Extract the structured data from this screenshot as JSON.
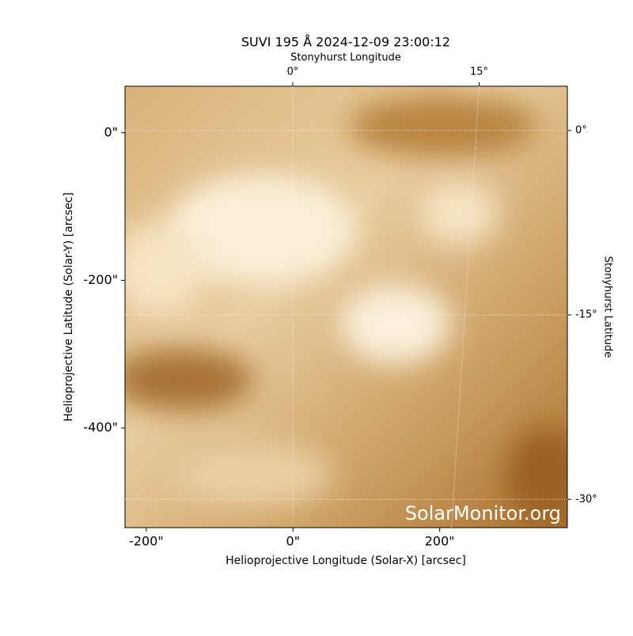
{
  "chart_data": {
    "type": "image",
    "title": "SUVI 195 Å 2024-12-09 23:00:12",
    "x_label": "Helioprojective Longitude (Solar-X) [arcsec]",
    "y_label": "Helioprojective Latitude (Solar-Y) [arcsec]",
    "x2_label": "Stonyhurst Longitude",
    "y2_label": "Stonyhurst Latitude",
    "xlim": [
      -229,
      374
    ],
    "ylim": [
      -535,
      63
    ],
    "xticks": [
      {
        "value": -200,
        "label": "-200\""
      },
      {
        "value": 0,
        "label": "0\""
      },
      {
        "value": 200,
        "label": "200\""
      }
    ],
    "yticks": [
      {
        "value": 0,
        "label": "0\""
      },
      {
        "value": -200,
        "label": "-200\""
      },
      {
        "value": -400,
        "label": "-400\""
      }
    ],
    "x2lim": [
      -13.5,
      22.1
    ],
    "x2ticks": [
      {
        "value": 0,
        "label": "0°"
      },
      {
        "value": 15,
        "label": "15°"
      }
    ],
    "y2lim": [
      -32.3,
      3.6
    ],
    "y2ticks": [
      {
        "value": 0,
        "label": "0°"
      },
      {
        "value": -15,
        "label": "-15°"
      },
      {
        "value": -30,
        "label": "-30°"
      }
    ],
    "watermark": "SolarMonitor.org",
    "grid": true
  }
}
